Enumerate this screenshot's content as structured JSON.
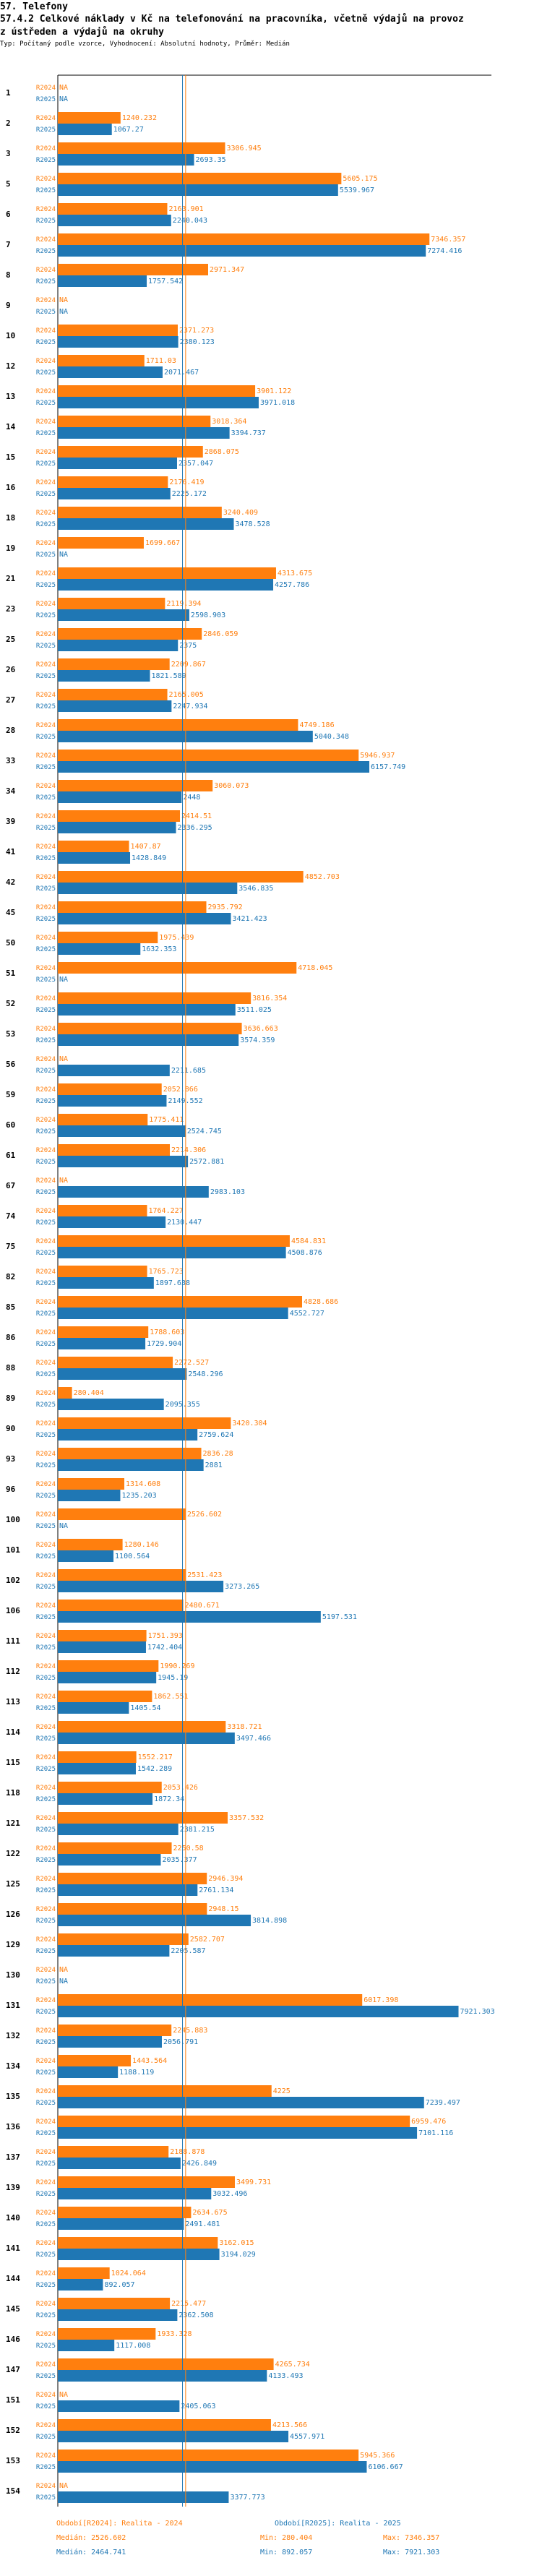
{
  "header": {
    "title": "57. Telefony",
    "subtitle_line1": "57.4.2 Celkové náklady v Kč na telefonování na pracovníka, včetně výdajů na provoz",
    "subtitle_line2": "z ústředen a výdajů na okruhy",
    "type_line": "Typ: Počítaný podle vzorce, Vyhodnocení: Absolutní hodnoty, Průměr: Medián"
  },
  "colors": {
    "r2024": "#ff7f0e",
    "r2025": "#1f77b4",
    "na_text": "#ff7f0e",
    "grid": "#000000"
  },
  "chart_data": {
    "type": "bar",
    "orientation": "horizontal",
    "xlim": [
      0,
      8000
    ],
    "series_names": [
      "R2024",
      "R2025"
    ],
    "na_label": "NA",
    "rows": [
      {
        "id": "1",
        "r2024": null,
        "r2025": null,
        "l24": "NA",
        "l25": "NA"
      },
      {
        "id": "2",
        "r2024": 1240.232,
        "r2025": 1067.27,
        "l24": "1240.232",
        "l25": "1067.27"
      },
      {
        "id": "3",
        "r2024": 3306.945,
        "r2025": 2693.35,
        "l24": "3306.945",
        "l25": "2693.35"
      },
      {
        "id": "5",
        "r2024": 5605.175,
        "r2025": 5539.967,
        "l24": "5605.175",
        "l25": "5539.967"
      },
      {
        "id": "6",
        "r2024": 2163.901,
        "r2025": 2240.043,
        "l24": "2163.901",
        "l25": "2240.043"
      },
      {
        "id": "7",
        "r2024": 7346.357,
        "r2025": 7274.416,
        "l24": "7346.357",
        "l25": "7274.416"
      },
      {
        "id": "8",
        "r2024": 2971.347,
        "r2025": 1757.542,
        "l24": "2971.347",
        "l25": "1757.542"
      },
      {
        "id": "9",
        "r2024": null,
        "r2025": null,
        "l24": "NA",
        "l25": "NA"
      },
      {
        "id": "10",
        "r2024": 2371.273,
        "r2025": 2380.123,
        "l24": "2371.273",
        "l25": "2380.123"
      },
      {
        "id": "12",
        "r2024": 1711.03,
        "r2025": 2071.467,
        "l24": "1711.03",
        "l25": "2071.467"
      },
      {
        "id": "13",
        "r2024": 3901.122,
        "r2025": 3971.018,
        "l24": "3901.122",
        "l25": "3971.018"
      },
      {
        "id": "14",
        "r2024": 3018.364,
        "r2025": 3394.737,
        "l24": "3018.364",
        "l25": "3394.737"
      },
      {
        "id": "15",
        "r2024": 2868.075,
        "r2025": 2357.047,
        "l24": "2868.075",
        "l25": "2357.047"
      },
      {
        "id": "16",
        "r2024": 2176.419,
        "r2025": 2225.172,
        "l24": "2176.419",
        "l25": "2225.172"
      },
      {
        "id": "18",
        "r2024": 3240.409,
        "r2025": 3478.528,
        "l24": "3240.409",
        "l25": "3478.528"
      },
      {
        "id": "19",
        "r2024": 1699.667,
        "r2025": null,
        "l24": "1699.667",
        "l25": "NA"
      },
      {
        "id": "21",
        "r2024": 4313.675,
        "r2025": 4257.786,
        "l24": "4313.675",
        "l25": "4257.786"
      },
      {
        "id": "23",
        "r2024": 2119.394,
        "r2025": 2598.903,
        "l24": "2119.394",
        "l25": "2598.903"
      },
      {
        "id": "25",
        "r2024": 2846.059,
        "r2025": 2375,
        "l24": "2846.059",
        "l25": "2375"
      },
      {
        "id": "26",
        "r2024": 2209.867,
        "r2025": 1821.589,
        "l24": "2209.867",
        "l25": "1821.589"
      },
      {
        "id": "27",
        "r2024": 2165.005,
        "r2025": 2247.934,
        "l24": "2165.005",
        "l25": "2247.934"
      },
      {
        "id": "28",
        "r2024": 4749.186,
        "r2025": 5040.348,
        "l24": "4749.186",
        "l25": "5040.348"
      },
      {
        "id": "33",
        "r2024": 5946.937,
        "r2025": 6157.749,
        "l24": "5946.937",
        "l25": "6157.749"
      },
      {
        "id": "34",
        "r2024": 3060.073,
        "r2025": 2448,
        "l24": "3060.073",
        "l25": "2448"
      },
      {
        "id": "39",
        "r2024": 2414.51,
        "r2025": 2336.295,
        "l24": "2414.51",
        "l25": "2336.295"
      },
      {
        "id": "41",
        "r2024": 1407.87,
        "r2025": 1428.849,
        "l24": "1407.87",
        "l25": "1428.849"
      },
      {
        "id": "42",
        "r2024": 4852.703,
        "r2025": 3546.835,
        "l24": "4852.703",
        "l25": "3546.835"
      },
      {
        "id": "45",
        "r2024": 2935.792,
        "r2025": 3421.423,
        "l24": "2935.792",
        "l25": "3421.423"
      },
      {
        "id": "50",
        "r2024": 1975.439,
        "r2025": 1632.353,
        "l24": "1975.439",
        "l25": "1632.353"
      },
      {
        "id": "51",
        "r2024": 4718.045,
        "r2025": null,
        "l24": "4718.045",
        "l25": "NA"
      },
      {
        "id": "52",
        "r2024": 3816.354,
        "r2025": 3511.025,
        "l24": "3816.354",
        "l25": "3511.025"
      },
      {
        "id": "53",
        "r2024": 3636.663,
        "r2025": 3574.359,
        "l24": "3636.663",
        "l25": "3574.359"
      },
      {
        "id": "56",
        "r2024": null,
        "r2025": 2211.685,
        "l24": "NA",
        "l25": "2211.685"
      },
      {
        "id": "59",
        "r2024": 2052.866,
        "r2025": 2149.552,
        "l24": "2052.866",
        "l25": "2149.552"
      },
      {
        "id": "60",
        "r2024": 1775.411,
        "r2025": 2524.745,
        "l24": "1775.411",
        "l25": "2524.745"
      },
      {
        "id": "61",
        "r2024": 2214.306,
        "r2025": 2572.881,
        "l24": "2214.306",
        "l25": "2572.881"
      },
      {
        "id": "67",
        "r2024": null,
        "r2025": 2983.103,
        "l24": "NA",
        "l25": "2983.103"
      },
      {
        "id": "74",
        "r2024": 1764.227,
        "r2025": 2130.447,
        "l24": "1764.227",
        "l25": "2130.447"
      },
      {
        "id": "75",
        "r2024": 4584.831,
        "r2025": 4508.876,
        "l24": "4584.831",
        "l25": "4508.876"
      },
      {
        "id": "82",
        "r2024": 1765.723,
        "r2025": 1897.638,
        "l24": "1765.723",
        "l25": "1897.638"
      },
      {
        "id": "85",
        "r2024": 4828.686,
        "r2025": 4552.727,
        "l24": "4828.686",
        "l25": "4552.727"
      },
      {
        "id": "86",
        "r2024": 1788.603,
        "r2025": 1729.904,
        "l24": "1788.603",
        "l25": "1729.904"
      },
      {
        "id": "88",
        "r2024": 2272.527,
        "r2025": 2548.296,
        "l24": "2272.527",
        "l25": "2548.296"
      },
      {
        "id": "89",
        "r2024": 280.404,
        "r2025": 2095.355,
        "l24": "280.404",
        "l25": "2095.355"
      },
      {
        "id": "90",
        "r2024": 3420.304,
        "r2025": 2759.624,
        "l24": "3420.304",
        "l25": "2759.624"
      },
      {
        "id": "93",
        "r2024": 2836.28,
        "r2025": 2881,
        "l24": "2836.28",
        "l25": "2881"
      },
      {
        "id": "96",
        "r2024": 1314.608,
        "r2025": 1235.203,
        "l24": "1314.608",
        "l25": "1235.203"
      },
      {
        "id": "100",
        "r2024": 2526.602,
        "r2025": null,
        "l24": "2526.602",
        "l25": "NA"
      },
      {
        "id": "101",
        "r2024": 1280.146,
        "r2025": 1100.564,
        "l24": "1280.146",
        "l25": "1100.564"
      },
      {
        "id": "102",
        "r2024": 2531.423,
        "r2025": 3273.265,
        "l24": "2531.423",
        "l25": "3273.265"
      },
      {
        "id": "106",
        "r2024": 2480.671,
        "r2025": 5197.531,
        "l24": "2480.671",
        "l25": "5197.531"
      },
      {
        "id": "111",
        "r2024": 1751.393,
        "r2025": 1742.404,
        "l24": "1751.393",
        "l25": "1742.404"
      },
      {
        "id": "112",
        "r2024": 1990.269,
        "r2025": 1945.19,
        "l24": "1990.269",
        "l25": "1945.19"
      },
      {
        "id": "113",
        "r2024": 1862.551,
        "r2025": 1405.54,
        "l24": "1862.551",
        "l25": "1405.54"
      },
      {
        "id": "114",
        "r2024": 3318.721,
        "r2025": 3497.466,
        "l24": "3318.721",
        "l25": "3497.466"
      },
      {
        "id": "115",
        "r2024": 1552.217,
        "r2025": 1542.289,
        "l24": "1552.217",
        "l25": "1542.289"
      },
      {
        "id": "118",
        "r2024": 2053.426,
        "r2025": 1872.34,
        "l24": "2053.426",
        "l25": "1872.34"
      },
      {
        "id": "121",
        "r2024": 3357.532,
        "r2025": 2381.215,
        "l24": "3357.532",
        "l25": "2381.215"
      },
      {
        "id": "122",
        "r2024": 2250.58,
        "r2025": 2035.377,
        "l24": "2250.58",
        "l25": "2035.377"
      },
      {
        "id": "125",
        "r2024": 2946.394,
        "r2025": 2761.134,
        "l24": "2946.394",
        "l25": "2761.134"
      },
      {
        "id": "126",
        "r2024": 2948.15,
        "r2025": 3814.898,
        "l24": "2948.15",
        "l25": "3814.898"
      },
      {
        "id": "129",
        "r2024": 2582.707,
        "r2025": 2205.587,
        "l24": "2582.707",
        "l25": "2205.587"
      },
      {
        "id": "130",
        "r2024": null,
        "r2025": null,
        "l24": "NA",
        "l25": "NA"
      },
      {
        "id": "131",
        "r2024": 6017.398,
        "r2025": 7921.303,
        "l24": "6017.398",
        "l25": "7921.303"
      },
      {
        "id": "132",
        "r2024": 2245.883,
        "r2025": 2056.791,
        "l24": "2245.883",
        "l25": "2056.791"
      },
      {
        "id": "134",
        "r2024": 1443.564,
        "r2025": 1188.119,
        "l24": "1443.564",
        "l25": "1188.119"
      },
      {
        "id": "135",
        "r2024": 4225,
        "r2025": 7239.497,
        "l24": "4225",
        "l25": "7239.497"
      },
      {
        "id": "136",
        "r2024": 6959.476,
        "r2025": 7101.116,
        "l24": "6959.476",
        "l25": "7101.116"
      },
      {
        "id": "137",
        "r2024": 2188.878,
        "r2025": 2426.849,
        "l24": "2188.878",
        "l25": "2426.849"
      },
      {
        "id": "139",
        "r2024": 3499.731,
        "r2025": 3032.496,
        "l24": "3499.731",
        "l25": "3032.496"
      },
      {
        "id": "140",
        "r2024": 2634.675,
        "r2025": 2491.481,
        "l24": "2634.675",
        "l25": "2491.481"
      },
      {
        "id": "141",
        "r2024": 3162.015,
        "r2025": 3194.029,
        "l24": "3162.015",
        "l25": "3194.029"
      },
      {
        "id": "144",
        "r2024": 1024.064,
        "r2025": 892.057,
        "l24": "1024.064",
        "l25": "892.057"
      },
      {
        "id": "145",
        "r2024": 2215.477,
        "r2025": 2362.508,
        "l24": "2215.477",
        "l25": "2362.508"
      },
      {
        "id": "146",
        "r2024": 1933.328,
        "r2025": 1117.008,
        "l24": "1933.328",
        "l25": "1117.008"
      },
      {
        "id": "147",
        "r2024": 4265.734,
        "r2025": 4133.493,
        "l24": "4265.734",
        "l25": "4133.493"
      },
      {
        "id": "151",
        "r2024": null,
        "r2025": 2405.063,
        "l24": "NA",
        "l25": "2405.063"
      },
      {
        "id": "152",
        "r2024": 4213.566,
        "r2025": 4557.971,
        "l24": "4213.566",
        "l25": "4557.971"
      },
      {
        "id": "153",
        "r2024": 5945.366,
        "r2025": 6106.667,
        "l24": "5945.366",
        "l25": "6106.667"
      },
      {
        "id": "154",
        "r2024": null,
        "r2025": 3377.773,
        "l24": "NA",
        "l25": "3377.773"
      }
    ],
    "reference_lines": [
      {
        "name": "median-2024",
        "value": 2526.602,
        "color": "#ff7f0e"
      },
      {
        "name": "median-2025",
        "value": 2464.741,
        "color": "#1f77b4"
      }
    ]
  },
  "legend": {
    "col1": {
      "line1": "Období[R2024]: Realita - 2024",
      "line2": "Medián: 2526.602",
      "color": "#ff7f0e"
    },
    "col2": {
      "line1": "Období[R2025]: Realita - 2025",
      "line2": "Medián: 2464.741",
      "color": "#1f77b4"
    },
    "col3": {
      "line1": "Min: 280.404",
      "line2": "Min: 892.057"
    },
    "col4": {
      "line1": "Max: 7346.357",
      "line2": "Max: 7921.303"
    }
  }
}
